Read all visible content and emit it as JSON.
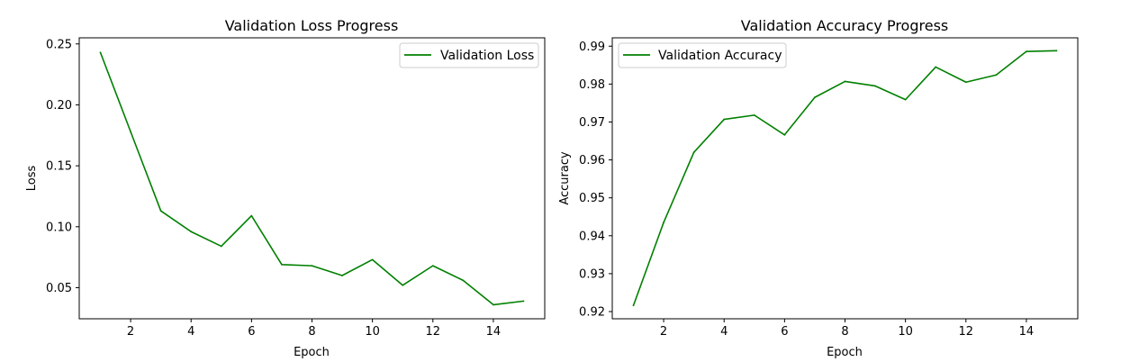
{
  "chart_data": [
    {
      "type": "line",
      "title": "Validation Loss Progress",
      "xlabel": "Epoch",
      "ylabel": "Loss",
      "xlim": [
        0.3,
        15.7
      ],
      "ylim": [
        0.0245,
        0.255
      ],
      "xticks": [
        2,
        4,
        6,
        8,
        10,
        12,
        14
      ],
      "yticks": [
        0.05,
        0.1,
        0.15,
        0.2,
        0.25
      ],
      "ytick_labels": [
        "0.05",
        "0.10",
        "0.15",
        "0.20",
        "0.25"
      ],
      "grid": false,
      "legend_position": "top-right",
      "series": [
        {
          "name": "Validation Loss",
          "color": "#008000",
          "x": [
            1,
            2,
            3,
            4,
            5,
            6,
            7,
            8,
            9,
            10,
            11,
            12,
            13,
            14,
            15
          ],
          "y": [
            0.243,
            0.178,
            0.113,
            0.096,
            0.084,
            0.109,
            0.069,
            0.068,
            0.06,
            0.073,
            0.052,
            0.068,
            0.056,
            0.036,
            0.039
          ]
        }
      ]
    },
    {
      "type": "line",
      "title": "Validation Accuracy Progress",
      "xlabel": "Epoch",
      "ylabel": "Accuracy",
      "xlim": [
        0.3,
        15.7
      ],
      "ylim": [
        0.9181,
        0.9922
      ],
      "xticks": [
        2,
        4,
        6,
        8,
        10,
        12,
        14
      ],
      "yticks": [
        0.92,
        0.93,
        0.94,
        0.95,
        0.96,
        0.97,
        0.98,
        0.99
      ],
      "ytick_labels": [
        "0.92",
        "0.93",
        "0.94",
        "0.95",
        "0.96",
        "0.97",
        "0.98",
        "0.99"
      ],
      "grid": false,
      "legend_position": "top-left",
      "series": [
        {
          "name": "Validation Accuracy",
          "color": "#008000",
          "x": [
            1,
            2,
            3,
            4,
            5,
            6,
            7,
            8,
            9,
            10,
            11,
            12,
            13,
            14,
            15
          ],
          "y": [
            0.9216,
            0.9435,
            0.962,
            0.9707,
            0.9718,
            0.9666,
            0.9765,
            0.9807,
            0.9795,
            0.9759,
            0.9845,
            0.9805,
            0.9824,
            0.9886,
            0.9888
          ]
        }
      ]
    }
  ]
}
